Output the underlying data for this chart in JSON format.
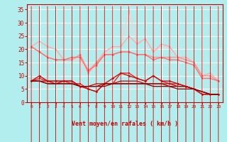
{
  "background_color": "#b2eeee",
  "grid_color": "#ffffff",
  "x_label": "Vent moyen/en rafales ( km/h )",
  "x_ticks": [
    0,
    1,
    2,
    3,
    4,
    5,
    6,
    7,
    8,
    9,
    10,
    11,
    12,
    13,
    14,
    15,
    16,
    17,
    18,
    19,
    20,
    21,
    22,
    23
  ],
  "ylim": [
    0,
    37
  ],
  "yticks": [
    0,
    5,
    10,
    15,
    20,
    25,
    30,
    35
  ],
  "series": [
    {
      "y": [
        21,
        23,
        21,
        20,
        16,
        16,
        18,
        12,
        15,
        19,
        21,
        21,
        25,
        22,
        24,
        19,
        22,
        21,
        17,
        17,
        15,
        10,
        11,
        8
      ],
      "color": "#ffaaaa",
      "lw": 1.0,
      "marker": null,
      "ms": 0
    },
    {
      "y": [
        21,
        19,
        17,
        16,
        16,
        16,
        18,
        11,
        15,
        18,
        18,
        19,
        19,
        18,
        18,
        17,
        17,
        17,
        17,
        16,
        15,
        10,
        10,
        8
      ],
      "color": "#ff9090",
      "lw": 1.0,
      "marker": "o",
      "ms": 1.8
    },
    {
      "y": [
        21,
        19,
        17,
        16,
        16,
        17,
        17,
        12,
        14,
        18,
        18,
        19,
        19,
        18,
        18,
        16,
        17,
        16,
        16,
        15,
        14,
        9,
        9,
        8
      ],
      "color": "#ff7070",
      "lw": 1.0,
      "marker": "o",
      "ms": 1.8
    },
    {
      "y": [
        8,
        9,
        8,
        8,
        8,
        7,
        7,
        5,
        4,
        7,
        7,
        11,
        11,
        9,
        8,
        10,
        8,
        7,
        7,
        6,
        5,
        3,
        3,
        3
      ],
      "color": "#ee2222",
      "lw": 1.0,
      "marker": "s",
      "ms": 2.0
    },
    {
      "y": [
        8,
        10,
        8,
        8,
        8,
        8,
        6,
        5,
        4,
        7,
        9,
        11,
        10,
        9,
        8,
        10,
        8,
        8,
        7,
        6,
        5,
        3,
        3,
        3
      ],
      "color": "#cc1111",
      "lw": 1.0,
      "marker": "D",
      "ms": 1.8
    },
    {
      "y": [
        8,
        8,
        8,
        7,
        8,
        8,
        6,
        6,
        7,
        7,
        7,
        8,
        8,
        8,
        7,
        7,
        7,
        7,
        6,
        6,
        5,
        4,
        3,
        3
      ],
      "color": "#cc0000",
      "lw": 0.9,
      "marker": null,
      "ms": 0
    },
    {
      "y": [
        8,
        8,
        7,
        7,
        7,
        7,
        6,
        6,
        6,
        7,
        7,
        7,
        7,
        7,
        7,
        7,
        7,
        6,
        6,
        6,
        5,
        4,
        3,
        3
      ],
      "color": "#aa0000",
      "lw": 0.9,
      "marker": null,
      "ms": 0
    },
    {
      "y": [
        8,
        8,
        7,
        7,
        7,
        7,
        6,
        6,
        6,
        6,
        7,
        7,
        7,
        7,
        7,
        6,
        6,
        6,
        5,
        5,
        5,
        4,
        3,
        3
      ],
      "color": "#880000",
      "lw": 0.9,
      "marker": null,
      "ms": 0
    }
  ],
  "spike_x": [
    0,
    1,
    2,
    3,
    4,
    5,
    6,
    7,
    8,
    9,
    10,
    11,
    12,
    13,
    14,
    15,
    16,
    17,
    18,
    19,
    20,
    21,
    22,
    23
  ],
  "spike_y": [
    21,
    19,
    17,
    16,
    16,
    16,
    16,
    11,
    14,
    18,
    21,
    21,
    35,
    22,
    24,
    19,
    21,
    21,
    17,
    17,
    15,
    10,
    11,
    8
  ],
  "spike_color": "#ffcccc",
  "arrow_color": "#cc0000"
}
